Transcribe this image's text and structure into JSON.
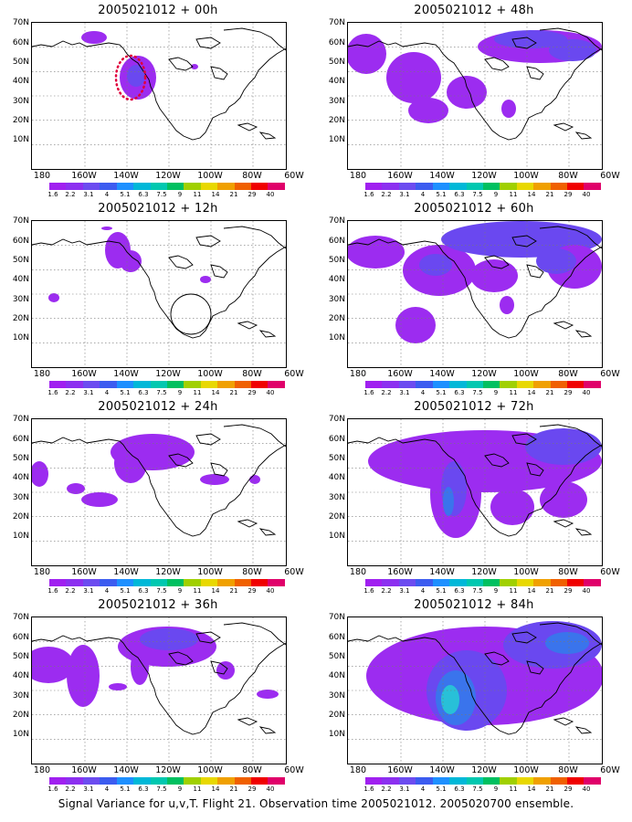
{
  "caption": "Signal Variance for u,v,T. Flight 21. Observation time 2005021012. 2005020700 ensemble.",
  "lat_labels": [
    "70N",
    "60N",
    "50N",
    "40N",
    "30N",
    "20N",
    "10N"
  ],
  "lon_labels": [
    "180",
    "160W",
    "140W",
    "120W",
    "100W",
    "80W",
    "60W"
  ],
  "colorbar_labels": [
    "1.6",
    "2.2",
    "3.1",
    "4",
    "5.1",
    "6.3",
    "7.5",
    "9",
    "11",
    "14",
    "21",
    "29",
    "40"
  ],
  "colorbar_colors": [
    "#a020f0",
    "#8c30f0",
    "#6c4cf0",
    "#3c5cf0",
    "#1e90ff",
    "#00b8d8",
    "#00c8b0",
    "#00c060",
    "#a0d000",
    "#e8d800",
    "#f0a000",
    "#f06000",
    "#f00000",
    "#e0006a"
  ],
  "panels": [
    {
      "title": "2005021012 + 00h"
    },
    {
      "title": "2005021012 + 48h"
    },
    {
      "title": "2005021012 + 12h"
    },
    {
      "title": "2005021012 + 60h"
    },
    {
      "title": "2005021012 + 24h"
    },
    {
      "title": "2005021012 + 72h"
    },
    {
      "title": "2005021012 + 36h"
    },
    {
      "title": "2005021012 + 84h"
    }
  ]
}
